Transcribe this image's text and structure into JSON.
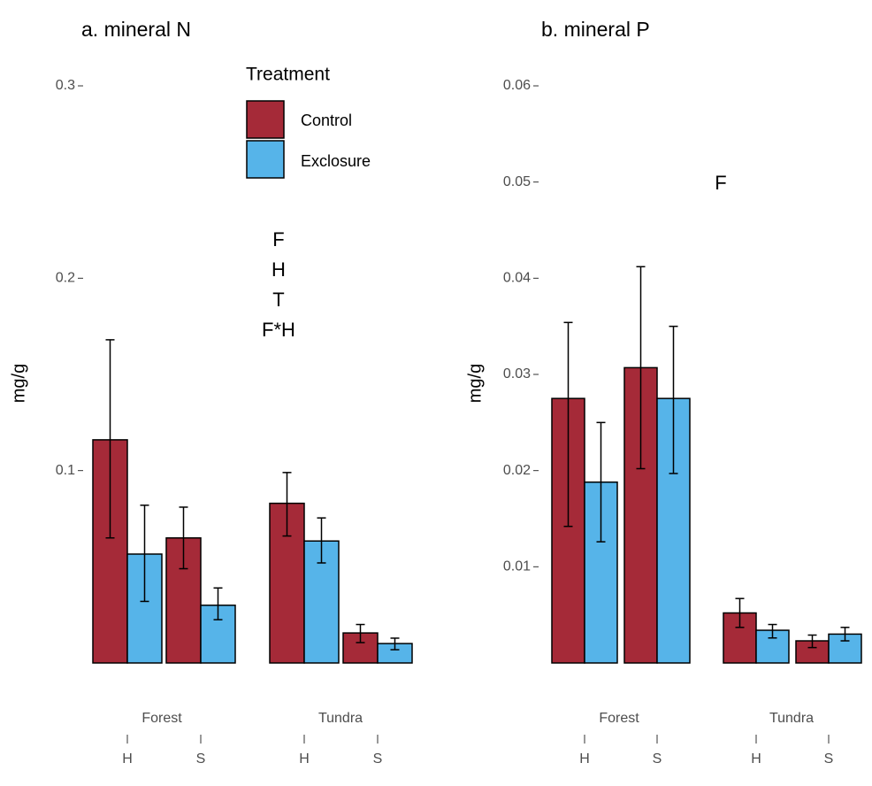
{
  "legend": {
    "title": "Treatment"
  },
  "chart_data": [
    {
      "type": "bar",
      "title": "a. mineral N",
      "ylabel": "mg/g",
      "groups": [
        "Forest",
        "Tundra"
      ],
      "categories": [
        "H",
        "S",
        "H",
        "S"
      ],
      "ylim": [
        0,
        0.3
      ],
      "yticks": [
        0.1,
        0.2,
        0.3
      ],
      "annotations": [
        "F",
        "H",
        "T",
        "F*H"
      ],
      "series": [
        {
          "name": "Control",
          "color": "#a52a38",
          "values": [
            0.116,
            0.065,
            0.083,
            0.0156
          ],
          "lower": [
            0.065,
            0.049,
            0.066,
            0.0106
          ],
          "upper": [
            0.168,
            0.081,
            0.099,
            0.02
          ]
        },
        {
          "name": "Exclosure",
          "color": "#56b4e9",
          "values": [
            0.0566,
            0.03,
            0.0634,
            0.0101
          ],
          "lower": [
            0.032,
            0.0225,
            0.052,
            0.0069
          ],
          "upper": [
            0.082,
            0.039,
            0.0754,
            0.0129
          ]
        }
      ]
    },
    {
      "type": "bar",
      "title": "b. mineral P",
      "ylabel": "mg/g",
      "groups": [
        "Forest",
        "Tundra"
      ],
      "categories": [
        "H",
        "S",
        "H",
        "S"
      ],
      "ylim": [
        0,
        0.06
      ],
      "yticks": [
        0.01,
        0.02,
        0.03,
        0.04,
        0.05,
        0.06
      ],
      "annotations": [
        "F"
      ],
      "series": [
        {
          "color": "#a52a38",
          "values": [
            0.0275,
            0.0307,
            0.0052,
            0.0023
          ],
          "lower": [
            0.0142,
            0.0202,
            0.0037,
            0.0016
          ],
          "upper": [
            0.0354,
            0.0412,
            0.0067,
            0.0029
          ]
        },
        {
          "color": "#56b4e9",
          "values": [
            0.0188,
            0.0275,
            0.0034,
            0.003
          ],
          "lower": [
            0.0126,
            0.0197,
            0.0026,
            0.0023
          ],
          "upper": [
            0.025,
            0.035,
            0.004,
            0.0037
          ]
        }
      ]
    }
  ]
}
